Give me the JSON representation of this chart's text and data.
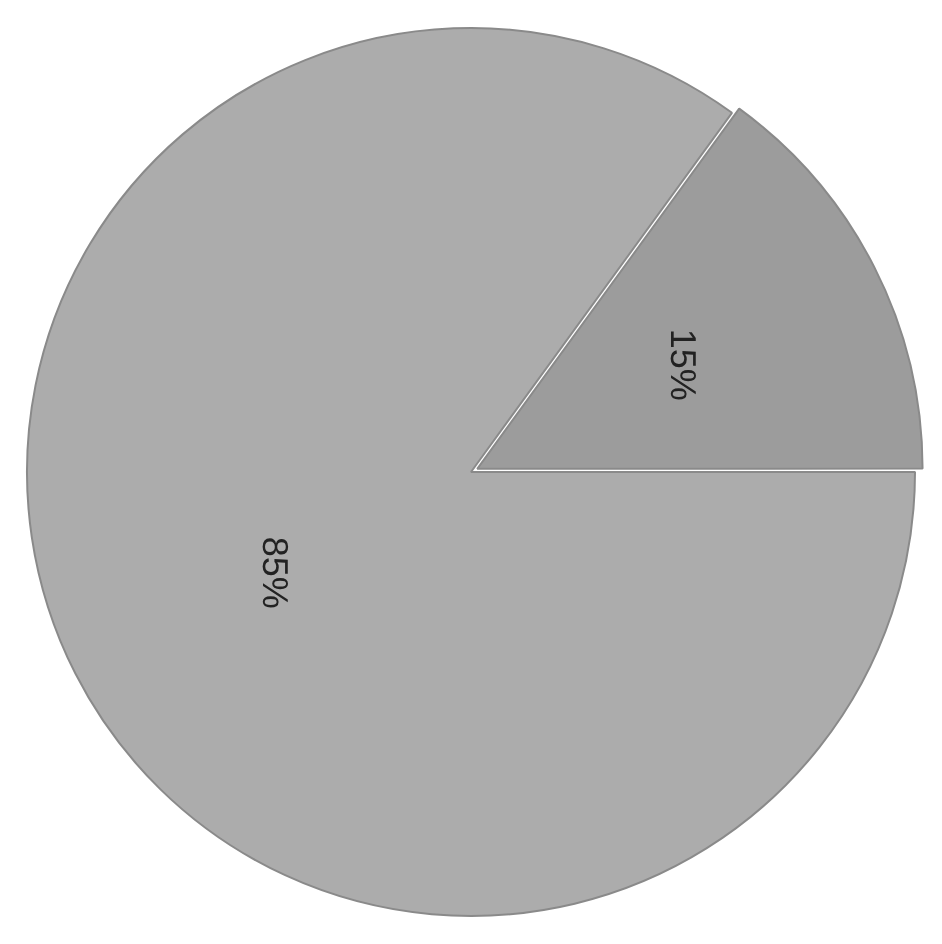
{
  "chart_data": {
    "type": "pie",
    "categories": [
      null,
      null
    ],
    "values": [
      15,
      85
    ],
    "colors": [
      "#9c9c9c",
      "#acacac"
    ],
    "value_labels": [
      "15%",
      "85%"
    ],
    "legend": false
  }
}
